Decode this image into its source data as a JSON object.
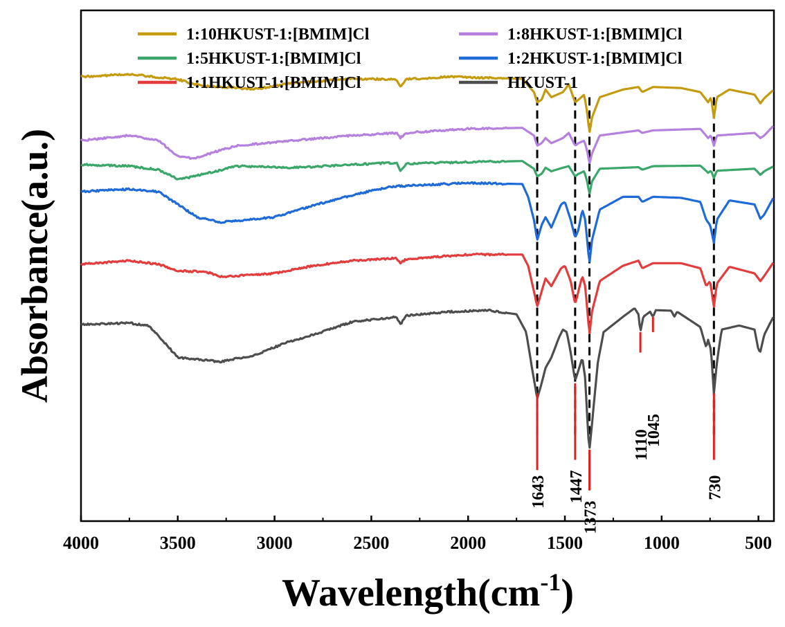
{
  "chart_data": {
    "type": "line",
    "title": "",
    "xlabel": "Wavelength(cm",
    "xlabel_sup": "-1",
    "xlabel_close": ")",
    "ylabel": "Absorbance(a.u.)",
    "xlim": [
      4000,
      420
    ],
    "x_reversed": true,
    "xticks": [
      4000,
      3500,
      3000,
      2500,
      2000,
      1500,
      1000,
      500
    ],
    "xtick_labels": [
      "4000",
      "3500",
      "3000",
      "2500",
      "2000",
      "1500",
      "1000",
      "500"
    ],
    "yticks": false,
    "ylim": [
      0,
      100
    ],
    "legend_position": "top",
    "series": [
      {
        "name": "1:10HKUST-1:[BMIM]Cl",
        "color": "#c49a0e",
        "baseline": 87,
        "points": [
          [
            4000,
            87
          ],
          [
            3750,
            87.5
          ],
          [
            3500,
            86.5
          ],
          [
            3380,
            85.2
          ],
          [
            3100,
            84.6
          ],
          [
            2900,
            85.8
          ],
          [
            2600,
            86.6
          ],
          [
            2370,
            86.5
          ],
          [
            2350,
            85
          ],
          [
            2320,
            86.5
          ],
          [
            2100,
            87
          ],
          [
            1720,
            86.6
          ],
          [
            1660,
            84
          ],
          [
            1643,
            82
          ],
          [
            1620,
            82.5
          ],
          [
            1600,
            84.5
          ],
          [
            1570,
            83
          ],
          [
            1510,
            84
          ],
          [
            1480,
            85.5
          ],
          [
            1447,
            82
          ],
          [
            1430,
            82.5
          ],
          [
            1400,
            83.5
          ],
          [
            1385,
            80
          ],
          [
            1373,
            76
          ],
          [
            1360,
            79
          ],
          [
            1320,
            83
          ],
          [
            1200,
            84.5
          ],
          [
            1120,
            85
          ],
          [
            1100,
            84
          ],
          [
            1045,
            85
          ],
          [
            900,
            84.8
          ],
          [
            800,
            84
          ],
          [
            760,
            82
          ],
          [
            745,
            83
          ],
          [
            730,
            79
          ],
          [
            715,
            83
          ],
          [
            650,
            84.5
          ],
          [
            520,
            83.5
          ],
          [
            490,
            81.8
          ],
          [
            470,
            82.8
          ],
          [
            420,
            84.5
          ]
        ]
      },
      {
        "name": "1:8HKUST-1:[BMIM]Cl",
        "color": "#b580de",
        "baseline": 75,
        "points": [
          [
            4000,
            74.5
          ],
          [
            3750,
            75.5
          ],
          [
            3600,
            74.5
          ],
          [
            3500,
            71.5
          ],
          [
            3420,
            71
          ],
          [
            3200,
            73.5
          ],
          [
            2900,
            74.5
          ],
          [
            2600,
            75.5
          ],
          [
            2370,
            76
          ],
          [
            2350,
            75
          ],
          [
            2320,
            76
          ],
          [
            2000,
            76.8
          ],
          [
            1720,
            77
          ],
          [
            1660,
            75.5
          ],
          [
            1643,
            73.5
          ],
          [
            1620,
            74
          ],
          [
            1600,
            75
          ],
          [
            1570,
            74
          ],
          [
            1510,
            75
          ],
          [
            1480,
            76
          ],
          [
            1447,
            73.5
          ],
          [
            1430,
            74
          ],
          [
            1400,
            74.5
          ],
          [
            1385,
            72.5
          ],
          [
            1373,
            70
          ],
          [
            1360,
            72
          ],
          [
            1320,
            75.5
          ],
          [
            1120,
            76.5
          ],
          [
            1100,
            76
          ],
          [
            1045,
            76.5
          ],
          [
            800,
            76.8
          ],
          [
            760,
            75
          ],
          [
            745,
            75.5
          ],
          [
            730,
            73.5
          ],
          [
            715,
            75.5
          ],
          [
            520,
            76
          ],
          [
            490,
            75
          ],
          [
            470,
            75.5
          ],
          [
            420,
            77.5
          ]
        ]
      },
      {
        "name": "1:5HKUST-1:[BMIM]Cl",
        "color": "#3aa66a",
        "baseline": 69,
        "points": [
          [
            4000,
            69.8
          ],
          [
            3750,
            69.5
          ],
          [
            3600,
            68.8
          ],
          [
            3500,
            67
          ],
          [
            3440,
            67.3
          ],
          [
            3300,
            68.5
          ],
          [
            3200,
            69.5
          ],
          [
            2900,
            69.2
          ],
          [
            2600,
            69.8
          ],
          [
            2370,
            70.2
          ],
          [
            2350,
            68.5
          ],
          [
            2320,
            70
          ],
          [
            2000,
            70.3
          ],
          [
            1720,
            70.5
          ],
          [
            1660,
            69
          ],
          [
            1643,
            67.5
          ],
          [
            1620,
            68
          ],
          [
            1600,
            69.2
          ],
          [
            1570,
            68.5
          ],
          [
            1510,
            69.2
          ],
          [
            1480,
            69.5
          ],
          [
            1447,
            67.5
          ],
          [
            1430,
            68
          ],
          [
            1400,
            68.5
          ],
          [
            1385,
            66.5
          ],
          [
            1373,
            64
          ],
          [
            1360,
            66.5
          ],
          [
            1320,
            69
          ],
          [
            1120,
            69.3
          ],
          [
            1100,
            68.8
          ],
          [
            1045,
            69.5
          ],
          [
            800,
            69.6
          ],
          [
            760,
            68.2
          ],
          [
            745,
            68.6
          ],
          [
            730,
            67.2
          ],
          [
            715,
            68.6
          ],
          [
            520,
            69
          ],
          [
            490,
            67.8
          ],
          [
            470,
            68.5
          ],
          [
            420,
            69.5
          ]
        ]
      },
      {
        "name": "1:2HKUST-1:[BMIM]Cl",
        "color": "#1e6ad6",
        "baseline": 65,
        "points": [
          [
            4000,
            64.5
          ],
          [
            3750,
            65
          ],
          [
            3600,
            64.5
          ],
          [
            3500,
            62
          ],
          [
            3400,
            59.5
          ],
          [
            3280,
            58.5
          ],
          [
            3000,
            59.5
          ],
          [
            2800,
            61.8
          ],
          [
            2600,
            63.8
          ],
          [
            2400,
            65.5
          ],
          [
            2000,
            66.2
          ],
          [
            1720,
            66
          ],
          [
            1690,
            63.5
          ],
          [
            1660,
            59
          ],
          [
            1643,
            55
          ],
          [
            1620,
            58
          ],
          [
            1600,
            59.5
          ],
          [
            1570,
            57.5
          ],
          [
            1520,
            62
          ],
          [
            1500,
            62.5
          ],
          [
            1470,
            59
          ],
          [
            1447,
            55.5
          ],
          [
            1430,
            57
          ],
          [
            1410,
            61
          ],
          [
            1395,
            59
          ],
          [
            1380,
            53
          ],
          [
            1373,
            50.5
          ],
          [
            1360,
            55
          ],
          [
            1320,
            61
          ],
          [
            1200,
            63.5
          ],
          [
            1120,
            63.5
          ],
          [
            1100,
            62.5
          ],
          [
            1045,
            63.5
          ],
          [
            900,
            63.3
          ],
          [
            800,
            62.5
          ],
          [
            770,
            59
          ],
          [
            750,
            58
          ],
          [
            730,
            54.5
          ],
          [
            715,
            59
          ],
          [
            650,
            62.8
          ],
          [
            520,
            62
          ],
          [
            490,
            59.2
          ],
          [
            470,
            60
          ],
          [
            420,
            63.5
          ]
        ]
      },
      {
        "name": "1:1HKUST-1:[BMIM]Cl",
        "color": "#e23c3c",
        "baseline": 50,
        "points": [
          [
            4000,
            50.3
          ],
          [
            3750,
            51
          ],
          [
            3600,
            50.3
          ],
          [
            3500,
            49
          ],
          [
            3350,
            48.8
          ],
          [
            3280,
            47.8
          ],
          [
            3000,
            48.5
          ],
          [
            2800,
            50
          ],
          [
            2600,
            51
          ],
          [
            2370,
            51.5
          ],
          [
            2350,
            50.5
          ],
          [
            2320,
            51.3
          ],
          [
            2000,
            52.2
          ],
          [
            1720,
            52.2
          ],
          [
            1690,
            50
          ],
          [
            1660,
            45
          ],
          [
            1643,
            42
          ],
          [
            1620,
            45
          ],
          [
            1600,
            47.5
          ],
          [
            1570,
            46
          ],
          [
            1520,
            49.5
          ],
          [
            1500,
            50
          ],
          [
            1470,
            47
          ],
          [
            1447,
            42.5
          ],
          [
            1430,
            45
          ],
          [
            1410,
            48
          ],
          [
            1395,
            46
          ],
          [
            1380,
            39.5
          ],
          [
            1373,
            36.5
          ],
          [
            1360,
            41
          ],
          [
            1320,
            47
          ],
          [
            1200,
            50
          ],
          [
            1120,
            51
          ],
          [
            1100,
            49.5
          ],
          [
            1045,
            50.5
          ],
          [
            900,
            50.5
          ],
          [
            800,
            49.5
          ],
          [
            770,
            46
          ],
          [
            750,
            47
          ],
          [
            730,
            42
          ],
          [
            715,
            46.5
          ],
          [
            650,
            49.8
          ],
          [
            520,
            48.5
          ],
          [
            490,
            47
          ],
          [
            470,
            48
          ],
          [
            420,
            50.8
          ]
        ]
      },
      {
        "name": "HKUST-1",
        "color": "#4d4d4d",
        "baseline": 40,
        "points": [
          [
            4000,
            38.5
          ],
          [
            3750,
            38.8
          ],
          [
            3650,
            38.2
          ],
          [
            3580,
            35.5
          ],
          [
            3500,
            32
          ],
          [
            3350,
            31.5
          ],
          [
            3280,
            31.2
          ],
          [
            3100,
            32.5
          ],
          [
            2950,
            34.8
          ],
          [
            2800,
            36.5
          ],
          [
            2600,
            39
          ],
          [
            2370,
            40
          ],
          [
            2350,
            38.5
          ],
          [
            2320,
            40.2
          ],
          [
            2100,
            41
          ],
          [
            1900,
            41.3
          ],
          [
            1750,
            40.5
          ],
          [
            1700,
            37
          ],
          [
            1670,
            30
          ],
          [
            1643,
            24
          ],
          [
            1620,
            27
          ],
          [
            1600,
            30
          ],
          [
            1570,
            32
          ],
          [
            1530,
            36
          ],
          [
            1510,
            37.5
          ],
          [
            1490,
            37
          ],
          [
            1470,
            33
          ],
          [
            1447,
            27.5
          ],
          [
            1430,
            29.5
          ],
          [
            1410,
            32
          ],
          [
            1395,
            28
          ],
          [
            1380,
            17
          ],
          [
            1373,
            14
          ],
          [
            1360,
            19
          ],
          [
            1330,
            31
          ],
          [
            1300,
            37
          ],
          [
            1200,
            40
          ],
          [
            1140,
            41.7
          ],
          [
            1120,
            40.5
          ],
          [
            1110,
            37
          ],
          [
            1095,
            40
          ],
          [
            1060,
            41
          ],
          [
            1045,
            40
          ],
          [
            1030,
            41.3
          ],
          [
            950,
            41.2
          ],
          [
            935,
            40
          ],
          [
            920,
            41
          ],
          [
            800,
            38
          ],
          [
            770,
            34
          ],
          [
            760,
            35.5
          ],
          [
            745,
            33.5
          ],
          [
            730,
            25
          ],
          [
            715,
            31
          ],
          [
            690,
            37.5
          ],
          [
            600,
            38.3
          ],
          [
            520,
            37.5
          ],
          [
            500,
            33.5
          ],
          [
            490,
            33.2
          ],
          [
            470,
            36.5
          ],
          [
            420,
            40.2
          ]
        ]
      }
    ],
    "dashed_markers": [
      1643,
      1447,
      1373,
      730
    ],
    "red_markers": [
      1643,
      1447,
      1373,
      1110,
      1045,
      730
    ],
    "peak_labels": [
      {
        "x": 1643,
        "label": "1643"
      },
      {
        "x": 1447,
        "label": "1447"
      },
      {
        "x": 1373,
        "label": "1373"
      },
      {
        "x": 1110,
        "label": "1110"
      },
      {
        "x": 1045,
        "label": "1045"
      },
      {
        "x": 730,
        "label": "730"
      }
    ],
    "legend": [
      {
        "label": "1:10HKUST-1:[BMIM]Cl",
        "color": "#c49a0e"
      },
      {
        "label": "1:8HKUST-1:[BMIM]Cl",
        "color": "#b580de"
      },
      {
        "label": "1:5HKUST-1:[BMIM]Cl",
        "color": "#3aa66a"
      },
      {
        "label": "1:2HKUST-1:[BMIM]Cl",
        "color": "#1e6ad6"
      },
      {
        "label": "1:1HKUST-1:[BMIM]Cl",
        "color": "#e23c3c"
      },
      {
        "label": "HKUST-1",
        "color": "#4d4d4d"
      }
    ]
  }
}
